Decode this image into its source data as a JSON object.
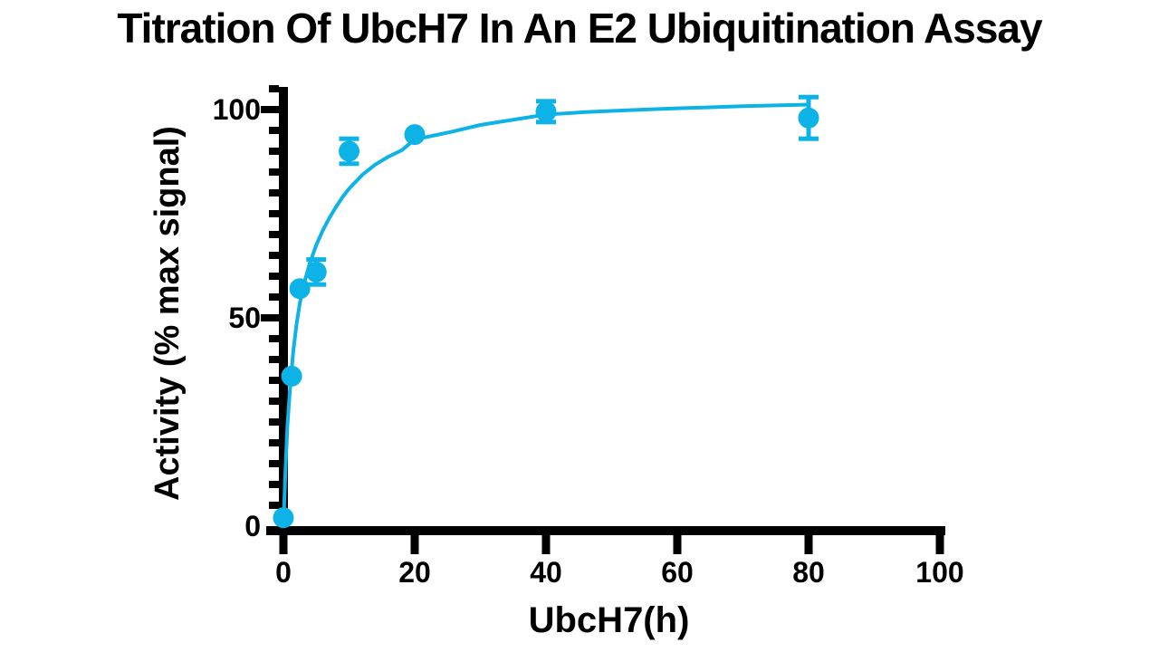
{
  "chart_data": {
    "type": "scatter",
    "title": "Titration Of UbcH7 In An E2 Ubiquitination Assay",
    "xlabel": "UbcH7(h)",
    "ylabel": "Activity (% max signal)",
    "xlim": [
      0,
      100
    ],
    "ylim": [
      0,
      105
    ],
    "grid": false,
    "legend": null,
    "marker": "circle",
    "x_ticks": [
      0,
      20,
      40,
      60,
      80,
      100
    ],
    "y_major_ticks": [
      0,
      50,
      100
    ],
    "y_minor_tick_step": 5,
    "points": [
      {
        "x": 0,
        "y": 2,
        "err": 0
      },
      {
        "x": 1.25,
        "y": 36,
        "err": 0
      },
      {
        "x": 2.5,
        "y": 57,
        "err": 0
      },
      {
        "x": 5,
        "y": 61,
        "err": 3
      },
      {
        "x": 10,
        "y": 90,
        "err": 3
      },
      {
        "x": 20,
        "y": 94,
        "err": 0
      },
      {
        "x": 40,
        "y": 99.5,
        "err": 2.5
      },
      {
        "x": 80,
        "y": 98,
        "err": 5
      }
    ],
    "fit_curve": [
      [
        0,
        0
      ],
      [
        0.3,
        13
      ],
      [
        0.6,
        24
      ],
      [
        1,
        33
      ],
      [
        1.5,
        42
      ],
      [
        2,
        48.5
      ],
      [
        2.5,
        53.5
      ],
      [
        3,
        57.5
      ],
      [
        4,
        63
      ],
      [
        5,
        67.5
      ],
      [
        6,
        71
      ],
      [
        7,
        74
      ],
      [
        8,
        76.6
      ],
      [
        9,
        79
      ],
      [
        10,
        81
      ],
      [
        12,
        84.3
      ],
      [
        14,
        86.8
      ],
      [
        16,
        88.7
      ],
      [
        18,
        90.2
      ],
      [
        20,
        92.8
      ],
      [
        23,
        93.8
      ],
      [
        26,
        94.8
      ],
      [
        30,
        96.3
      ],
      [
        34,
        97.3
      ],
      [
        40,
        98.8
      ],
      [
        46,
        99.4
      ],
      [
        52,
        99.8
      ],
      [
        58,
        100.2
      ],
      [
        64,
        100.5
      ],
      [
        70,
        100.8
      ],
      [
        75,
        101.0
      ],
      [
        80,
        101.2
      ]
    ],
    "colors": {
      "accent": "#0db2e7",
      "axis": "#000000",
      "background": "#ffffff",
      "text": "#000000"
    }
  }
}
